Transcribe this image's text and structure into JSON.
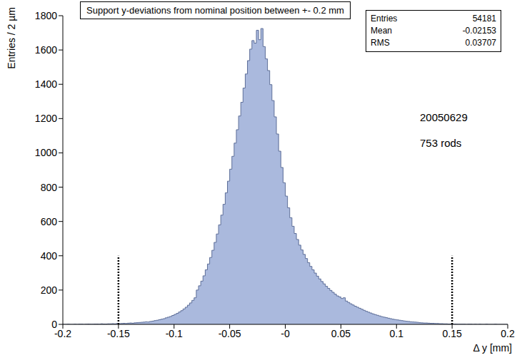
{
  "chart_data": {
    "type": "histogram",
    "title": "Support y-deviations from nominal position between +- 0.2 mm",
    "x_label": "Δ y [mm]",
    "y_label": "Entries / 2 µm",
    "color": "#aab9dd",
    "bins": [
      -0.2,
      -0.198,
      -0.196,
      -0.194,
      -0.192,
      -0.19,
      -0.188,
      -0.186,
      -0.184,
      -0.182,
      -0.18,
      -0.178,
      -0.176,
      -0.174,
      -0.172,
      -0.17,
      -0.168,
      -0.166,
      -0.164,
      -0.162,
      -0.16,
      -0.158,
      -0.156,
      -0.154,
      -0.152,
      -0.15,
      -0.148,
      -0.146,
      -0.144,
      -0.142,
      -0.14,
      -0.138,
      -0.136,
      -0.134,
      -0.132,
      -0.13,
      -0.128,
      -0.126,
      -0.124,
      -0.122,
      -0.12,
      -0.118,
      -0.116,
      -0.114,
      -0.112,
      -0.11,
      -0.108,
      -0.106,
      -0.104,
      -0.102,
      -0.1,
      -0.098,
      -0.096,
      -0.094,
      -0.092,
      -0.09,
      -0.088,
      -0.086,
      -0.084,
      -0.082,
      -0.08,
      -0.078,
      -0.076,
      -0.074,
      -0.072,
      -0.07,
      -0.068,
      -0.066,
      -0.064,
      -0.062,
      -0.06,
      -0.058,
      -0.056,
      -0.054,
      -0.052,
      -0.05,
      -0.048,
      -0.046,
      -0.044,
      -0.042,
      -0.04,
      -0.038,
      -0.036,
      -0.034,
      -0.032,
      -0.03,
      -0.028,
      -0.026,
      -0.024,
      -0.022,
      -0.02,
      -0.018,
      -0.016,
      -0.014,
      -0.012,
      -0.01,
      -0.008,
      -0.006,
      -0.004,
      -0.002,
      0,
      0.002,
      0.004,
      0.006,
      0.008,
      0.01,
      0.012,
      0.014,
      0.016,
      0.018,
      0.02,
      0.022,
      0.024,
      0.026,
      0.028,
      0.03,
      0.032,
      0.034,
      0.036,
      0.038,
      0.04,
      0.042,
      0.044,
      0.046,
      0.048,
      0.05,
      0.052,
      0.054,
      0.056,
      0.058,
      0.06,
      0.062,
      0.064,
      0.066,
      0.068,
      0.07,
      0.072,
      0.074,
      0.076,
      0.078,
      0.08,
      0.082,
      0.084,
      0.086,
      0.088,
      0.09,
      0.092,
      0.094,
      0.096,
      0.098,
      0.1,
      0.102,
      0.104,
      0.106,
      0.108,
      0.11,
      0.112,
      0.114,
      0.116,
      0.118,
      0.12,
      0.122,
      0.124,
      0.126,
      0.128,
      0.13,
      0.132,
      0.134,
      0.136,
      0.138,
      0.14,
      0.142,
      0.144,
      0.146,
      0.148,
      0.15,
      0.152,
      0.154,
      0.156,
      0.158,
      0.16,
      0.162,
      0.164,
      0.166,
      0.168,
      0.17,
      0.172,
      0.174,
      0.176,
      0.178,
      0.18,
      0.182,
      0.184,
      0.186,
      0.188,
      0.19,
      0.192,
      0.194,
      0.196,
      0.198,
      0.2
    ],
    "values": [
      0,
      0,
      1,
      0,
      0,
      1,
      0,
      1,
      1,
      0,
      1,
      2,
      1,
      1,
      2,
      2,
      1,
      3,
      2,
      2,
      3,
      3,
      4,
      3,
      5,
      4,
      5,
      6,
      5,
      7,
      8,
      7,
      9,
      10,
      11,
      12,
      13,
      15,
      14,
      17,
      19,
      22,
      24,
      27,
      30,
      33,
      38,
      42,
      46,
      52,
      58,
      64,
      72,
      80,
      90,
      100,
      112,
      125,
      140,
      155,
      200,
      225,
      252,
      283,
      318,
      352,
      390,
      432,
      478,
      527,
      580,
      637,
      700,
      767,
      835,
      905,
      980,
      1057,
      1135,
      1215,
      1295,
      1378,
      1460,
      1538,
      1605,
      1655,
      1640,
      1715,
      1660,
      1725,
      1620,
      1548,
      1480,
      1398,
      1305,
      1210,
      1110,
      1010,
      915,
      826,
      748,
      680,
      622,
      572,
      530,
      495,
      462,
      434,
      408,
      384,
      360,
      338,
      318,
      299,
      281,
      265,
      250,
      236,
      222,
      210,
      198,
      187,
      176,
      166,
      160,
      151,
      155,
      136,
      128,
      120,
      113,
      106,
      100,
      94,
      88,
      82,
      76,
      71,
      66,
      61,
      57,
      53,
      49,
      45,
      42,
      39,
      36,
      33,
      30,
      28,
      26,
      24,
      22,
      20,
      18,
      17,
      15,
      14,
      13,
      12,
      10,
      9,
      8,
      8,
      7,
      6,
      6,
      5,
      5,
      4,
      4,
      3,
      3,
      2,
      2,
      1,
      2,
      1,
      1,
      1,
      1,
      0,
      1,
      1,
      0,
      1,
      0,
      1,
      0,
      0,
      1,
      0,
      0,
      0,
      1,
      0,
      0,
      0,
      0,
      0
    ],
    "xlim": [
      -0.2,
      0.2
    ],
    "xticks": [
      -0.2,
      -0.15,
      -0.1,
      -0.05,
      {
        "value": 0,
        "label": "-0"
      },
      0.05,
      0.1,
      0.15,
      0.2
    ],
    "ylim": [
      0,
      1800
    ],
    "yticks": [
      0,
      200,
      400,
      600,
      800,
      1000,
      1200,
      1400,
      1600,
      1800
    ],
    "limit_lines": [
      {
        "x": -0.15,
        "y": 400
      },
      {
        "x": 0.15,
        "y": 400
      }
    ],
    "stats": [
      {
        "label": "Entries",
        "value": 54181
      },
      {
        "label": "Mean",
        "value": -0.02153
      },
      {
        "label": "RMS",
        "value": 0.03707
      }
    ],
    "annotations": [
      "20050629",
      "753 rods"
    ],
    "grid": false
  }
}
